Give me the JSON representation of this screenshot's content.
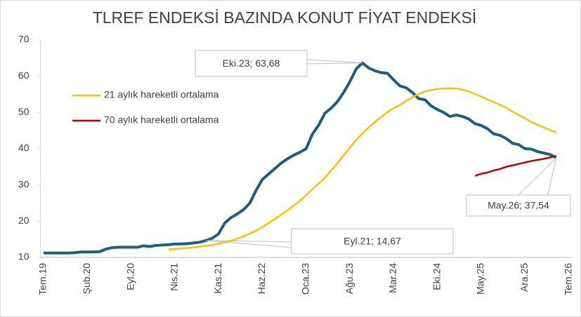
{
  "chart_data": {
    "type": "line",
    "title": "TLREF ENDEKSİ BAZINDA KONUT FİYAT ENDEKSİ",
    "categories": [
      "Tem.19",
      null,
      null,
      null,
      null,
      null,
      null,
      "Şub.20",
      null,
      null,
      null,
      null,
      null,
      null,
      "Eyl.20",
      null,
      null,
      null,
      null,
      null,
      null,
      "Nis.21",
      null,
      null,
      null,
      null,
      null,
      null,
      "Kas.21",
      null,
      null,
      null,
      null,
      null,
      null,
      "Haz.22",
      null,
      null,
      null,
      null,
      null,
      null,
      "Oca.23",
      null,
      null,
      null,
      null,
      null,
      null,
      "Ağu.23",
      null,
      null,
      null,
      null,
      null,
      null,
      "Mar.24",
      null,
      null,
      null,
      null,
      null,
      null,
      "Eki.24",
      null,
      null,
      null,
      null,
      null,
      null,
      "May.25",
      null,
      null,
      null,
      null,
      null,
      null,
      "Ara.25",
      null,
      null,
      null,
      null,
      null,
      null,
      "Tem.26"
    ],
    "series": [
      {
        "color": "#1b5e7e",
        "values": [
          11.2,
          11.2,
          11.2,
          11.2,
          11.2,
          11.3,
          11.5,
          11.5,
          11.5,
          11.6,
          12.3,
          12.7,
          12.8,
          12.8,
          12.8,
          12.8,
          13.2,
          13.0,
          13.3,
          13.4,
          13.5,
          13.7,
          13.7,
          13.8,
          14.0,
          14.2,
          14.67,
          15.3,
          16.5,
          19.5,
          21.0,
          22.0,
          23.2,
          25.0,
          28.5,
          31.5,
          33.0,
          34.5,
          36.0,
          37.2,
          38.2,
          39.0,
          40.0,
          44.0,
          46.5,
          49.8,
          51.2,
          53.0,
          55.5,
          58.5,
          62.0,
          63.68,
          62.3,
          61.5,
          61.0,
          60.8,
          59.0,
          57.3,
          56.8,
          55.5,
          53.8,
          53.5,
          51.8,
          50.8,
          50.0,
          48.9,
          49.3,
          48.9,
          48.2,
          46.9,
          46.4,
          45.5,
          44.1,
          43.7,
          42.8,
          41.5,
          41.1,
          40.0,
          39.9,
          39.2,
          38.8,
          38.4,
          37.54,
          null,
          null
        ]
      },
      {
        "name": "21 aylık hareketli ortalama",
        "color": "#ffc000",
        "values": [
          null,
          null,
          null,
          null,
          null,
          null,
          null,
          null,
          null,
          null,
          null,
          null,
          null,
          null,
          null,
          null,
          null,
          null,
          null,
          null,
          12.2,
          12.3,
          12.5,
          12.6,
          12.8,
          13.0,
          13.2,
          13.4,
          13.8,
          14.2,
          14.6,
          15.2,
          15.8,
          16.6,
          17.4,
          18.4,
          19.5,
          20.6,
          21.8,
          23.0,
          24.3,
          25.6,
          27.2,
          28.8,
          30.4,
          32.0,
          34.0,
          36.0,
          38.2,
          40.3,
          42.4,
          44.2,
          45.9,
          47.4,
          48.8,
          50.1,
          51.2,
          52.1,
          53.2,
          54.2,
          55.1,
          55.8,
          56.2,
          56.5,
          56.6,
          56.7,
          56.6,
          56.3,
          55.8,
          55.1,
          54.4,
          53.6,
          52.9,
          52.1,
          51.3,
          50.2,
          49.3,
          48.4,
          47.4,
          46.6,
          45.9,
          45.1,
          44.5,
          null,
          null
        ]
      },
      {
        "name": "70 aylık hareketli ortalama",
        "color": "#c00000",
        "values": [
          null,
          null,
          null,
          null,
          null,
          null,
          null,
          null,
          null,
          null,
          null,
          null,
          null,
          null,
          null,
          null,
          null,
          null,
          null,
          null,
          null,
          null,
          null,
          null,
          null,
          null,
          null,
          null,
          null,
          null,
          null,
          null,
          null,
          null,
          null,
          null,
          null,
          null,
          null,
          null,
          null,
          null,
          null,
          null,
          null,
          null,
          null,
          null,
          null,
          null,
          null,
          null,
          null,
          null,
          null,
          null,
          null,
          null,
          null,
          null,
          null,
          null,
          null,
          null,
          null,
          null,
          null,
          null,
          null,
          32.5,
          33.1,
          33.4,
          34.0,
          34.4,
          35.0,
          35.4,
          35.8,
          36.2,
          36.6,
          36.9,
          37.2,
          37.6,
          38.0,
          null,
          null
        ]
      }
    ],
    "annotations": [
      "Eki.23; 63,68",
      "Eyl.21; 14,67",
      "May.26; 37,54"
    ],
    "ylim": [
      10,
      70
    ],
    "yticks": [
      10,
      20,
      30,
      40,
      50,
      60,
      70
    ],
    "grid": false,
    "legend": "upper-left"
  }
}
